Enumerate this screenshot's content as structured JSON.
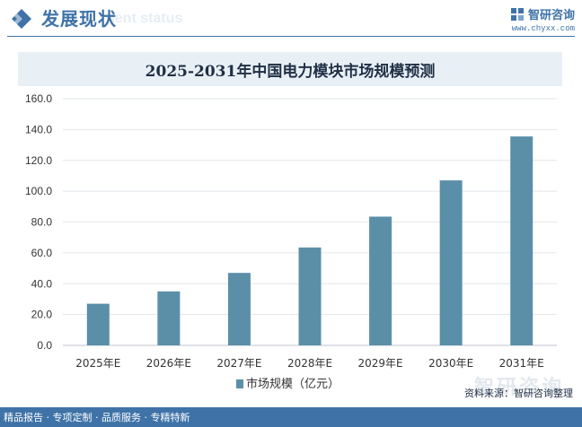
{
  "header": {
    "section_title": "发展现状",
    "section_subtitle": "nent status",
    "brand_name": "智研咨询",
    "brand_url": "www.chyxx.com"
  },
  "chart_data": {
    "type": "bar",
    "title": "2025-2031年中国电力模块市场规模预测",
    "categories": [
      "2025年E",
      "2026年E",
      "2027年E",
      "2028年E",
      "2029年E",
      "2030年E",
      "2031年E"
    ],
    "series": [
      {
        "name": "市场规模（亿元）",
        "values": [
          27.0,
          35.0,
          47.0,
          63.5,
          83.5,
          107.0,
          135.5
        ]
      }
    ],
    "ylim": [
      0,
      160
    ],
    "yticks": [
      "0.0",
      "20.0",
      "40.0",
      "60.0",
      "80.0",
      "100.0",
      "120.0",
      "140.0",
      "160.0"
    ],
    "grid": true,
    "legend": "bottom",
    "bar_color": "#5b8fa8"
  },
  "footer": {
    "tagline": "精品报告 · 专项定制 · 品质服务 · 专精特新",
    "source": "资料来源：智研咨询整理",
    "watermark": "智研咨询"
  },
  "colors": {
    "accent": "#3f73a8",
    "title_bg": "#e8f0f6"
  }
}
